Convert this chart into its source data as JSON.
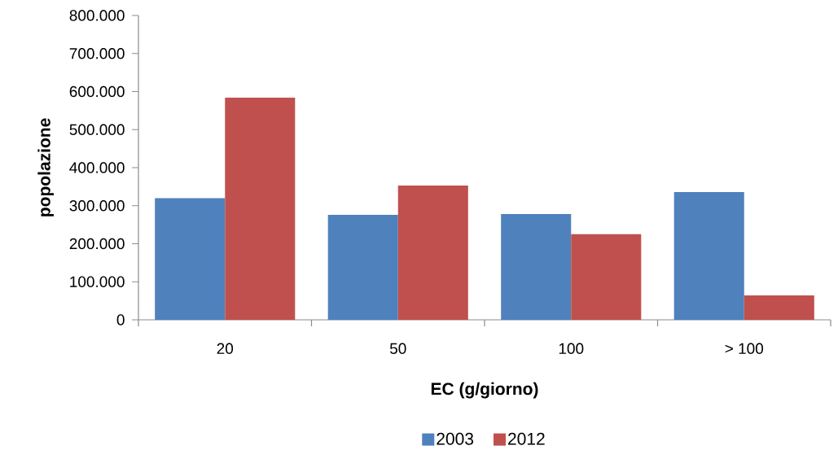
{
  "chart_data": {
    "type": "bar",
    "xlabel": "EC (g/giorno)",
    "ylabel": "popolazione",
    "categories": [
      "20",
      "50",
      "100",
      "> 100"
    ],
    "series": [
      {
        "name": "2003",
        "color": "#4f81bd",
        "values": [
          320000,
          276000,
          278000,
          336000
        ]
      },
      {
        "name": "2012",
        "color": "#c0504d",
        "values": [
          584000,
          353000,
          225000,
          64000
        ]
      }
    ],
    "ylim": [
      0,
      800000
    ],
    "yticks": [
      {
        "value": 0,
        "label": "0"
      },
      {
        "value": 100000,
        "label": "100.000"
      },
      {
        "value": 200000,
        "label": "200.000"
      },
      {
        "value": 300000,
        "label": "300.000"
      },
      {
        "value": 400000,
        "label": "400.000"
      },
      {
        "value": 500000,
        "label": "500.000"
      },
      {
        "value": 600000,
        "label": "600.000"
      },
      {
        "value": 700000,
        "label": "700.000"
      },
      {
        "value": 800000,
        "label": "800.000"
      }
    ],
    "grid": false,
    "legend": "bottom"
  }
}
